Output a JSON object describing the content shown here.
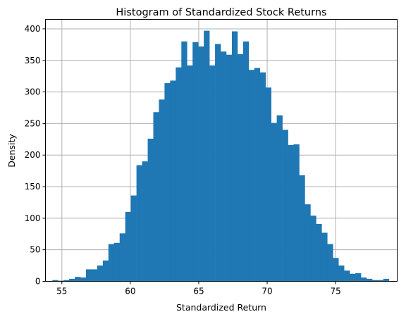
{
  "chart_data": {
    "type": "bar",
    "title": "Histogram of Standardized Stock Returns",
    "xlabel": "Standardized Return",
    "ylabel": "Density",
    "xlim": [
      53.8,
      79.5
    ],
    "ylim": [
      0,
      415
    ],
    "xticks": [
      55,
      60,
      65,
      70,
      75,
      80
    ],
    "yticks": [
      0,
      50,
      100,
      150,
      200,
      250,
      300,
      350,
      400
    ],
    "grid": true,
    "bar_color": "#1f77b4",
    "bin_start": 54.3,
    "bin_width": 0.41,
    "values": [
      2,
      1,
      2,
      4,
      7,
      6,
      19,
      19,
      25,
      33,
      59,
      61,
      76,
      110,
      136,
      184,
      190,
      226,
      268,
      288,
      314,
      318,
      339,
      380,
      342,
      379,
      372,
      397,
      342,
      376,
      364,
      359,
      396,
      360,
      380,
      335,
      338,
      331,
      307,
      251,
      263,
      240,
      216,
      217,
      168,
      122,
      104,
      91,
      77,
      59,
      37,
      25,
      17,
      12,
      13,
      6,
      4,
      2,
      2,
      4
    ]
  }
}
